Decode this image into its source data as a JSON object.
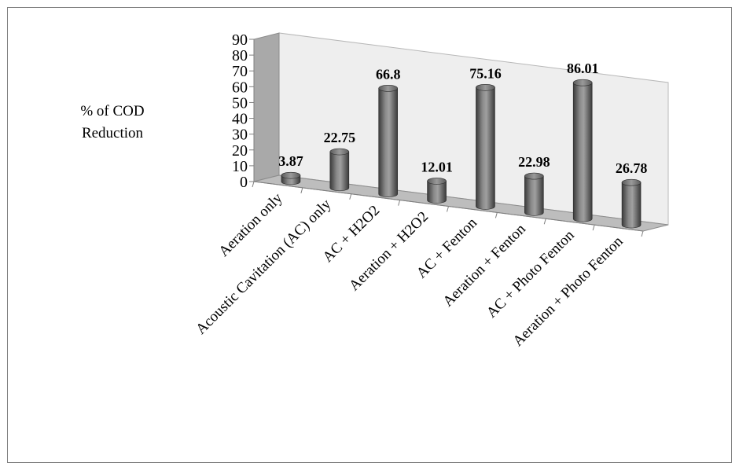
{
  "chart_data": {
    "type": "bar",
    "style": "3d-cylinder",
    "title": "",
    "xlabel": "",
    "ylabel": "% of COD Reduction",
    "ylabel_lines": [
      "% of COD",
      "Reduction"
    ],
    "ylim": [
      0,
      90
    ],
    "yticks": [
      "0",
      "10",
      "20",
      "30",
      "40",
      "50",
      "60",
      "70",
      "80",
      "90"
    ],
    "categories": [
      "Aeration only",
      "Acoustic Cavitation (AC) only",
      "AC + H2O2",
      "Aeration + H2O2",
      "AC + Fenton",
      "Aeration + Fenton",
      "AC + Photo Fenton",
      "Aeration + Photo Fenton"
    ],
    "values": [
      3.87,
      22.75,
      66.8,
      12.01,
      75.16,
      22.98,
      86.01,
      26.78
    ],
    "data_labels": [
      "3.87",
      "22.75",
      "66.8",
      "12.01",
      "75.16",
      "22.98",
      "86.01",
      "26.78"
    ],
    "grid": false,
    "legend": "none",
    "colors": {
      "bar_dark": "#3a3a3a",
      "bar_mid": "#7a7a7a",
      "bar_light": "#a6a6a6",
      "wall": "#eeeeee",
      "side_wall": "#a9a9a9",
      "floor": "#bdbdbd"
    }
  }
}
